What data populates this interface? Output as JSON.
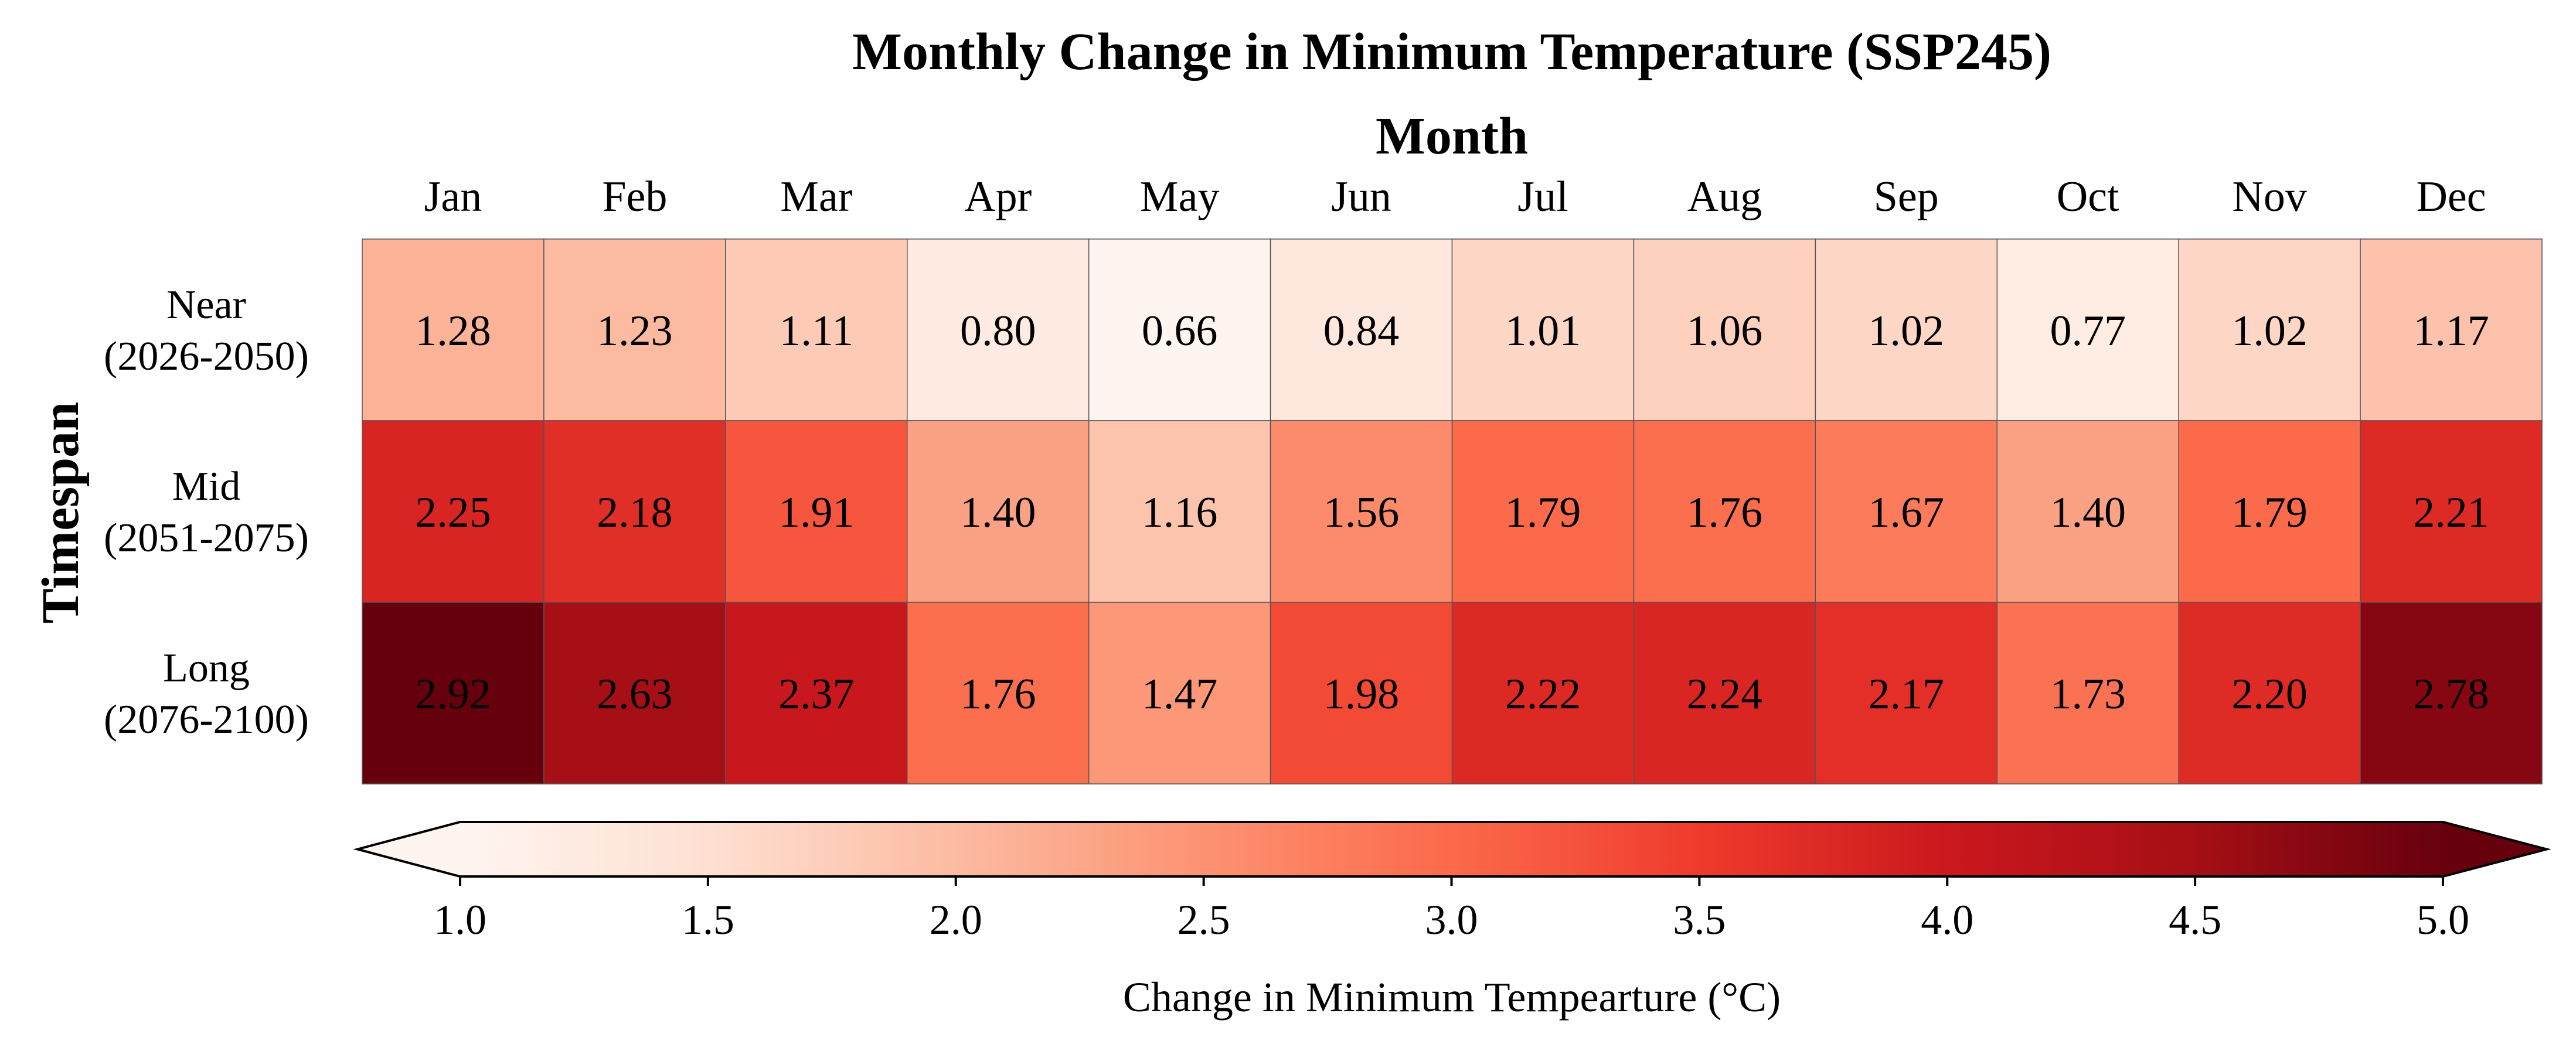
{
  "chart_data": {
    "type": "heatmap",
    "title": "Monthly Change in Minimum Temperature (SSP245)",
    "xlabel": "Month",
    "ylabel": "Timespan",
    "columns": [
      "Jan",
      "Feb",
      "Mar",
      "Apr",
      "May",
      "Jun",
      "Jul",
      "Aug",
      "Sep",
      "Oct",
      "Nov",
      "Dec"
    ],
    "rows": [
      {
        "label_top": "Near",
        "label_bottom": "(2026-2050)",
        "values": [
          1.28,
          1.23,
          1.11,
          0.8,
          0.66,
          0.84,
          1.01,
          1.06,
          1.02,
          0.77,
          1.02,
          1.17
        ],
        "display": [
          "1.28",
          "1.23",
          "1.11",
          "0.80",
          "0.66",
          "0.84",
          "1.01",
          "1.06",
          "1.02",
          "0.77",
          "1.02",
          "1.17"
        ]
      },
      {
        "label_top": "Mid",
        "label_bottom": "(2051-2075)",
        "values": [
          2.25,
          2.18,
          1.91,
          1.4,
          1.16,
          1.56,
          1.79,
          1.76,
          1.67,
          1.4,
          1.79,
          2.21
        ],
        "display": [
          "2.25",
          "2.18",
          "1.91",
          "1.40",
          "1.16",
          "1.56",
          "1.79",
          "1.76",
          "1.67",
          "1.40",
          "1.79",
          "2.21"
        ]
      },
      {
        "label_top": "Long",
        "label_bottom": "(2076-2100)",
        "values": [
          2.92,
          2.63,
          2.37,
          1.76,
          1.47,
          1.98,
          2.22,
          2.24,
          2.17,
          1.73,
          2.2,
          2.78
        ],
        "display": [
          "2.92",
          "2.63",
          "2.37",
          "1.76",
          "1.47",
          "1.98",
          "2.22",
          "2.24",
          "2.17",
          "1.73",
          "2.20",
          "2.78"
        ]
      }
    ],
    "cell_color_range": [
      0.66,
      2.92
    ],
    "colormap": "Reds",
    "colorbar": {
      "label": "Change in Minimum Tempearture (°C)",
      "range": [
        1.0,
        5.0
      ],
      "ticks": [
        "1.0",
        "1.5",
        "2.0",
        "2.5",
        "3.0",
        "3.5",
        "4.0",
        "4.5",
        "5.0"
      ],
      "extend": "both",
      "orientation": "horizontal",
      "placement": "bottom"
    },
    "colors": [
      "#fff5f0",
      "#fee0d2",
      "#fcbba1",
      "#fc9272",
      "#fb6a4a",
      "#ef3b2c",
      "#cb181d",
      "#a50f15",
      "#67000d"
    ]
  }
}
